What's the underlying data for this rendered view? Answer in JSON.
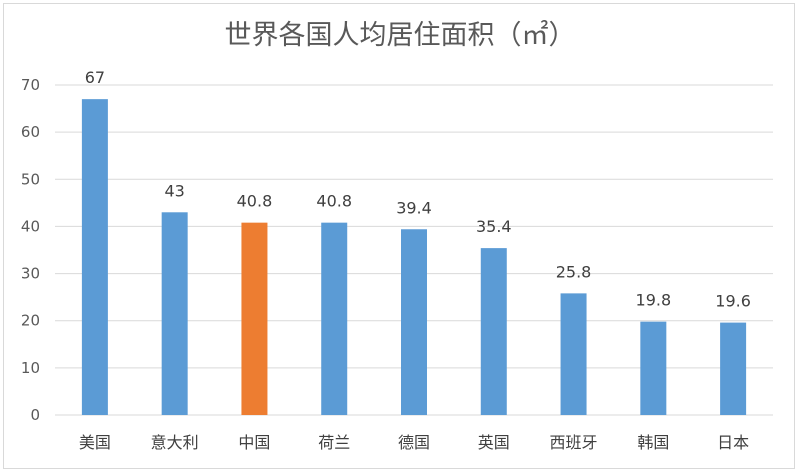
{
  "chart_data": {
    "type": "bar",
    "title": "世界各国人均居住面积（㎡）",
    "categories": [
      "美国",
      "意大利",
      "中国",
      "荷兰",
      "德国",
      "英国",
      "西班牙",
      "韩国",
      "日本"
    ],
    "values": [
      67,
      43,
      40.8,
      40.8,
      39.4,
      35.4,
      25.8,
      19.8,
      19.6
    ],
    "data_labels": [
      "67",
      "43",
      "40.8",
      "40.8",
      "39.4",
      "35.4",
      "25.8",
      "19.8",
      "19.6"
    ],
    "ylim": [
      0,
      70
    ],
    "yticks": [
      0,
      10,
      20,
      30,
      40,
      50,
      60,
      70
    ],
    "grid": true,
    "legend": "none",
    "colors": {
      "bar": "#5b9bd5",
      "highlight": "#ed7d31",
      "grid": "#d9d9d9"
    },
    "highlight_category": "中国"
  }
}
